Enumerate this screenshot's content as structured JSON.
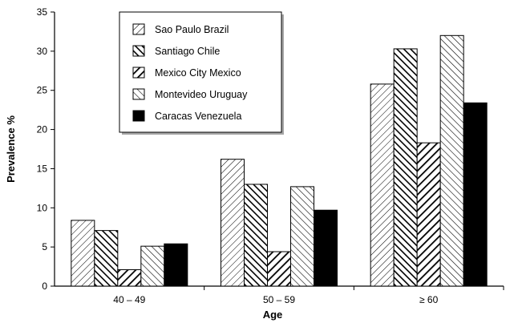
{
  "chart_data": {
    "type": "bar",
    "title": "",
    "xlabel": "Age",
    "ylabel": "Prevalence %",
    "categories": [
      "40 – 49",
      "50 – 59",
      "≥ 60"
    ],
    "ylim": [
      0,
      35
    ],
    "yticks": [
      0,
      5,
      10,
      15,
      20,
      25,
      30,
      35
    ],
    "grid": false,
    "legend": "top-left",
    "series": [
      {
        "name": "Sao Paulo Brazil",
        "pattern": "diag-down-light",
        "values": [
          8.4,
          16.2,
          25.8
        ]
      },
      {
        "name": "Santiago Chile",
        "pattern": "diag-up-dense",
        "values": [
          7.1,
          13.0,
          30.3
        ]
      },
      {
        "name": "Mexico City Mexico",
        "pattern": "diag-down-dense",
        "values": [
          2.1,
          4.4,
          18.3
        ]
      },
      {
        "name": "Montevideo Uruguay",
        "pattern": "diag-up-light",
        "values": [
          5.1,
          12.7,
          32.0
        ]
      },
      {
        "name": "Caracas Venezuela",
        "pattern": "solid",
        "values": [
          5.4,
          9.7,
          23.4
        ]
      }
    ],
    "colors": {
      "ink": "#000000",
      "background": "#ffffff"
    }
  }
}
